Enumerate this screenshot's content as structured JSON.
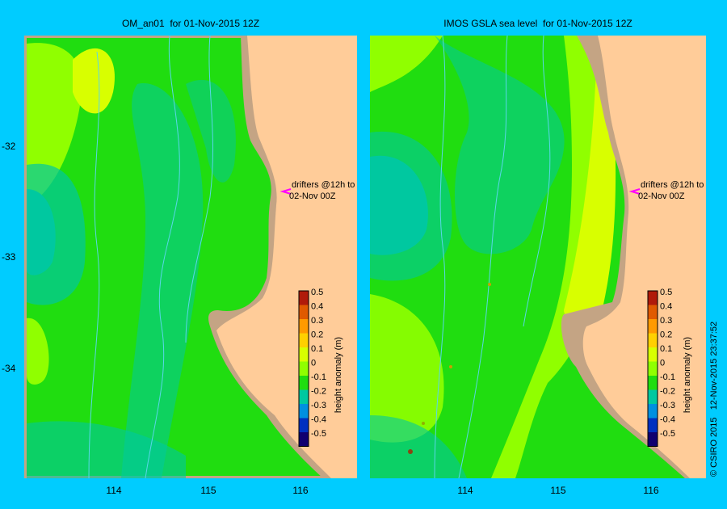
{
  "panels": [
    {
      "title": "OM_an01  for 01-Nov-2015 12Z",
      "drifter_label_line1": "drifters @12h to",
      "drifter_label_line2": "02-Nov 00Z",
      "colorbar_label": "height anomaly (m)"
    },
    {
      "title": "IMOS GSLA sea level  for 01-Nov-2015 12Z",
      "drifter_label_line1": "drifters @12h to",
      "drifter_label_line2": "02-Nov 00Z",
      "colorbar_label": "height anomaly (m)"
    }
  ],
  "y_ticks": [
    "-32",
    "-33",
    "-34"
  ],
  "x_ticks": [
    "114",
    "115",
    "116"
  ],
  "colorbar_ticks": [
    "0.5",
    "0.4",
    "0.3",
    "0.2",
    "0.1",
    "0",
    "-0.1",
    "-0.2",
    "-0.3",
    "-0.4",
    "-0.5"
  ],
  "colorbar_colors": [
    "#b01a0a",
    "#e05a00",
    "#ff9a00",
    "#ffd000",
    "#d8ff00",
    "#90ff00",
    "#20dd10",
    "#00c8a0",
    "#0090e0",
    "#0030c0",
    "#100070"
  ],
  "copyright": "© CSIRO 2015   12-Nov-2015 23:37:52",
  "colors": {
    "frame_background": "#00ccff",
    "land": "#ffcc99",
    "coast_shelf": "#c4a484",
    "drifter_marker": "#ff00ff",
    "bathymetry_contour": "#5ad6e8"
  }
}
